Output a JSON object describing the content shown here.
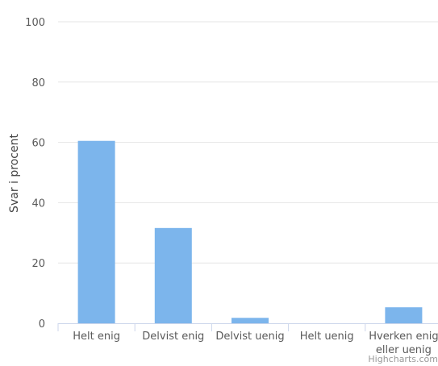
{
  "chart_data": {
    "type": "bar",
    "categories": [
      "Helt enig",
      "Delvist enig",
      "Delvist uenig",
      "Helt uenig",
      "Hverken enig eller uenig"
    ],
    "category_lines": [
      [
        "Helt enig"
      ],
      [
        "Delvist enig"
      ],
      [
        "Delvist uenig"
      ],
      [
        "Helt uenig"
      ],
      [
        "Hverken enig",
        "eller uenig"
      ]
    ],
    "values": [
      60.5,
      31.6,
      1.8,
      0,
      5.3
    ],
    "ylabel": "Svar i procent",
    "xlabel": "",
    "ylim": [
      0,
      100
    ],
    "yticks": [
      0,
      20,
      40,
      60,
      80,
      100
    ],
    "grid": true,
    "legend": "none",
    "bar_color": "#7cb5ec",
    "grid_color": "#e6e6e6",
    "axis_color": "#ccd6eb"
  },
  "credit": "Highcharts.com"
}
